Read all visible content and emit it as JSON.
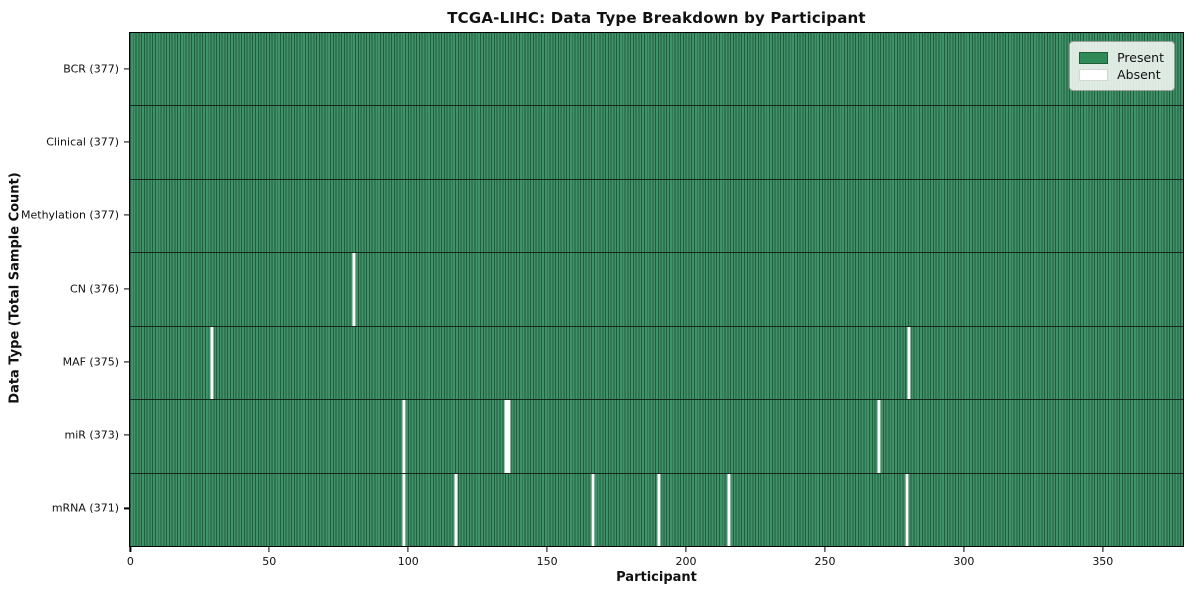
{
  "chart_data": {
    "type": "heatmap",
    "title": "TCGA-LIHC: Data Type Breakdown by Participant",
    "xlabel": "Participant",
    "ylabel": "Data Type (Total Sample Count)",
    "legend": [
      "Present",
      "Absent"
    ],
    "legend_position": "upper right",
    "n_participants": 377,
    "x_ticks": [
      0,
      50,
      100,
      150,
      200,
      250,
      300,
      350
    ],
    "x_range": [
      -0.5,
      378.5
    ],
    "grid": false,
    "rows": [
      {
        "label": "BCR (377)",
        "data_type": "BCR",
        "total": 377,
        "absent_indices": []
      },
      {
        "label": "Clinical (377)",
        "data_type": "Clinical",
        "total": 377,
        "absent_indices": []
      },
      {
        "label": "Methylation (377)",
        "data_type": "Methylation",
        "total": 377,
        "absent_indices": []
      },
      {
        "label": "CN (376)",
        "data_type": "CN",
        "total": 376,
        "absent_indices": [
          80
        ]
      },
      {
        "label": "MAF (375)",
        "data_type": "MAF",
        "total": 375,
        "absent_indices": [
          29,
          280
        ]
      },
      {
        "label": "miR (373)",
        "data_type": "miR",
        "total": 373,
        "absent_indices": [
          98,
          135,
          136,
          269
        ]
      },
      {
        "label": "mRNA (371)",
        "data_type": "mRNA",
        "total": 371,
        "absent_indices": [
          98,
          117,
          166,
          190,
          215,
          279
        ]
      }
    ],
    "colors": {
      "present": "#2e8b57",
      "present_stripe_light": "#3d9468",
      "present_stripe_dark": "#26593f",
      "absent": "#ffffff",
      "row_divider": "#14281c",
      "axis": "#000000"
    }
  }
}
